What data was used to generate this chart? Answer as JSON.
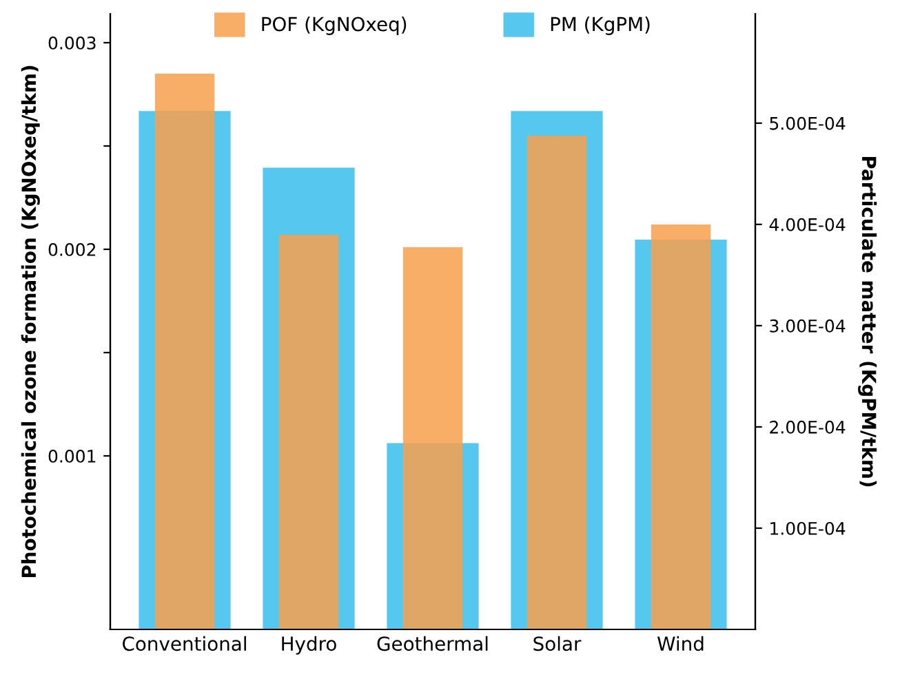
{
  "chart_data": {
    "type": "bar",
    "categories": [
      "Conventional",
      "Hydro",
      "Geothermal",
      "Solar",
      "Wind"
    ],
    "ylabel": "Photochemical ozone formation (KgNOxeq/tkm)",
    "y2label": "Particulate matter (KgPM/tkm)",
    "series": [
      {
        "name": "POF (KgNOxeq)",
        "color": "#f7a04c",
        "values": [
          0.00285,
          0.00207,
          0.00201,
          0.00255,
          0.00212
        ]
      },
      {
        "name": "PM (KgPM)",
        "color": "#56c8f0",
        "axis": "y2",
        "values": [
          0.000512,
          0.000456,
          0.000184,
          0.000512,
          0.000385
        ]
      }
    ],
    "ylim": [
      0.00016,
      0.00314
    ],
    "yticks": [
      {
        "value": 0.001,
        "label": "0.001"
      },
      {
        "value": 0.0015,
        "label": null
      },
      {
        "value": 0.002,
        "label": "0.002"
      },
      {
        "value": 0.0025,
        "label": null
      },
      {
        "value": 0.003,
        "label": "0.003"
      }
    ],
    "y2lim": [
      0,
      0.000608
    ],
    "y2ticks": [
      {
        "value": 0.0001,
        "label": "1.00E-04"
      },
      {
        "value": 0.0002,
        "label": "2.00E-04"
      },
      {
        "value": 0.0003,
        "label": "3.00E-04"
      },
      {
        "value": 0.0004,
        "label": "4.00E-04"
      },
      {
        "value": 0.0005,
        "label": "5.00E-04"
      }
    ],
    "grid": false,
    "legend": "top"
  }
}
